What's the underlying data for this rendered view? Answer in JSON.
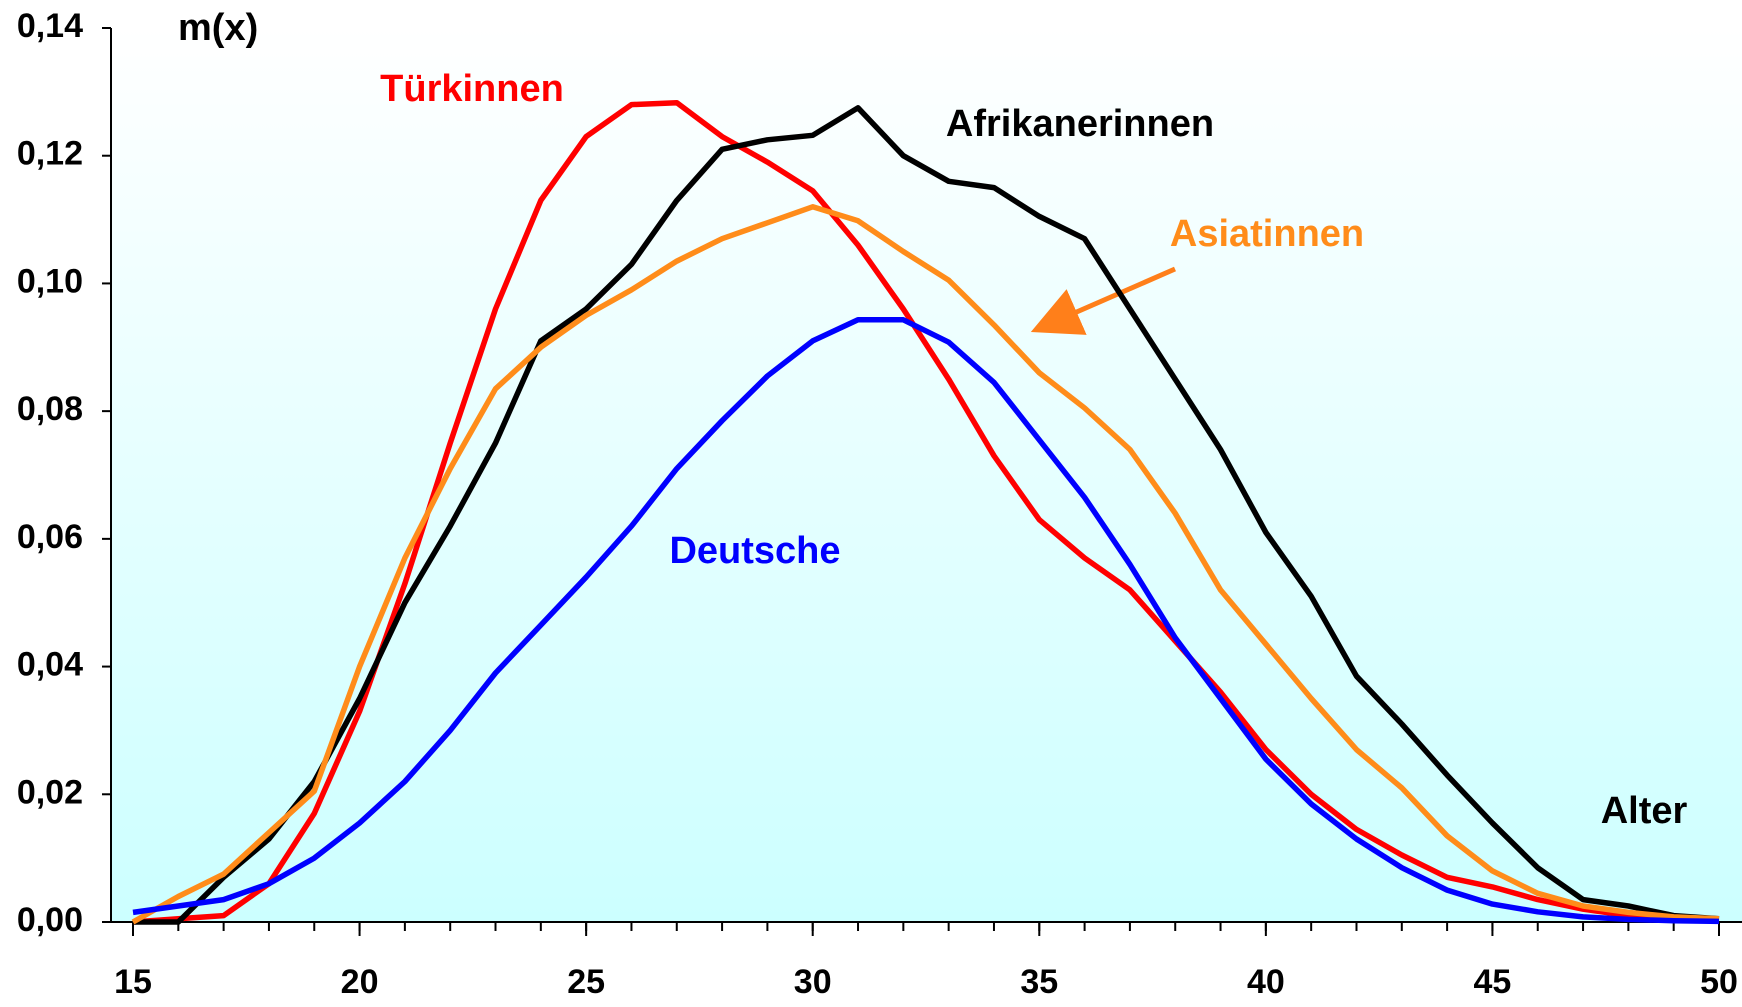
{
  "chart_data": {
    "type": "line",
    "y_label": "m(x)",
    "x_label": "Alter",
    "x": [
      15,
      16,
      17,
      18,
      19,
      20,
      21,
      22,
      23,
      24,
      25,
      26,
      27,
      28,
      29,
      30,
      31,
      32,
      33,
      34,
      35,
      36,
      37,
      38,
      39,
      40,
      41,
      42,
      43,
      44,
      45,
      46,
      47,
      48,
      49,
      50
    ],
    "series": [
      {
        "name": "Türkinnen",
        "color": "#ff0000",
        "values": [
          0.0,
          0.0005,
          0.001,
          0.006,
          0.017,
          0.033,
          0.053,
          0.075,
          0.096,
          0.113,
          0.123,
          0.128,
          0.1283,
          0.123,
          0.119,
          0.1145,
          0.106,
          0.096,
          0.085,
          0.073,
          0.063,
          0.057,
          0.052,
          0.044,
          0.036,
          0.027,
          0.02,
          0.0145,
          0.0105,
          0.007,
          0.0055,
          0.0035,
          0.002,
          0.001,
          0.0005,
          0.0003
        ]
      },
      {
        "name": "Afrikanerinnen",
        "color": "#000000",
        "values": [
          0,
          0,
          0.007,
          0.013,
          0.022,
          0.035,
          0.05,
          0.062,
          0.075,
          0.091,
          0.096,
          0.103,
          0.113,
          0.121,
          0.1225,
          0.1232,
          0.1275,
          0.12,
          0.116,
          0.115,
          0.1105,
          0.107,
          0.096,
          0.085,
          0.074,
          0.061,
          0.051,
          0.0385,
          0.031,
          0.023,
          0.0155,
          0.0085,
          0.0035,
          0.0025,
          0.001,
          0.0005
        ]
      },
      {
        "name": "Asiatinnen",
        "color": "#ff8c1a",
        "values": [
          0,
          0.004,
          0.0075,
          0.014,
          0.0205,
          0.04,
          0.057,
          0.071,
          0.0835,
          0.09,
          0.095,
          0.099,
          0.1035,
          0.107,
          0.1095,
          0.112,
          0.1098,
          0.105,
          0.1005,
          0.0935,
          0.086,
          0.0805,
          0.074,
          0.064,
          0.052,
          0.0435,
          0.035,
          0.027,
          0.021,
          0.0135,
          0.008,
          0.0045,
          0.0025,
          0.0015,
          0.0008,
          0.0005
        ]
      },
      {
        "name": "Deutsche",
        "color": "#0000ff",
        "values": [
          0.0015,
          0.0025,
          0.0035,
          0.006,
          0.01,
          0.0155,
          0.022,
          0.03,
          0.039,
          0.0465,
          0.054,
          0.062,
          0.071,
          0.0785,
          0.0855,
          0.091,
          0.0943,
          0.0943,
          0.0908,
          0.0845,
          0.0755,
          0.0665,
          0.056,
          0.0445,
          0.035,
          0.0255,
          0.0185,
          0.013,
          0.0085,
          0.005,
          0.0028,
          0.0016,
          0.0008,
          0.0004,
          0.0002,
          0.0001
        ]
      }
    ],
    "xlim": [
      15,
      50
    ],
    "xticks": [
      15,
      20,
      25,
      30,
      35,
      40,
      45,
      50
    ],
    "ylim": [
      0,
      0.14
    ],
    "yticks": [
      {
        "value": 0,
        "label": "0,00"
      },
      {
        "value": 0.02,
        "label": "0,02"
      },
      {
        "value": 0.04,
        "label": "0,04"
      },
      {
        "value": 0.06,
        "label": "0,06"
      },
      {
        "value": 0.08,
        "label": "0,08"
      },
      {
        "value": 0.1,
        "label": "0,10"
      },
      {
        "value": 0.12,
        "label": "0,12"
      },
      {
        "value": 0.14,
        "label": "0,14"
      }
    ],
    "grid": false
  }
}
